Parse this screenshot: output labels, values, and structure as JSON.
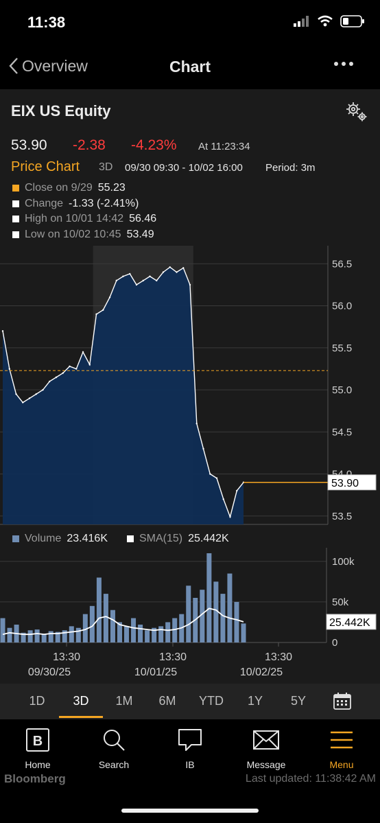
{
  "status": {
    "time": "11:38"
  },
  "nav": {
    "back_label": "Overview",
    "title": "Chart"
  },
  "security": {
    "ticker": "EIX US Equity"
  },
  "quote": {
    "last": "53.90",
    "change": "-2.38",
    "pct_change": "-4.23%",
    "as_of": "At 11:23:34"
  },
  "chart_header": {
    "label": "Price Chart",
    "range": "3D",
    "dates": "09/30 09:30 - 10/02 16:00",
    "period": "Period: 3m"
  },
  "legend": [
    {
      "label": "Close on 9/29",
      "value": "55.23",
      "color": "#f5a623"
    },
    {
      "label": "Change",
      "value": "-1.33 (-2.41%)",
      "color": "#ffffff"
    },
    {
      "label": "High on 10/01 14:42",
      "value": "56.46",
      "color": "#ffffff"
    },
    {
      "label": "Low on 10/02 10:45",
      "value": "53.49",
      "color": "#ffffff"
    }
  ],
  "volume_legend": {
    "volume_label": "Volume",
    "volume_value": "23.416K",
    "volume_color": "#6f8db3",
    "sma_label": "SMA(15)",
    "sma_value": "25.442K",
    "sma_color": "#ffffff"
  },
  "chart_data": [
    {
      "type": "area",
      "title": "Price Chart",
      "x": [
        "09/30/25 09:30",
        "09/30/25 10:00",
        "09/30/25 10:30",
        "09/30/25 11:00",
        "09/30/25 11:30",
        "09/30/25 12:00",
        "09/30/25 12:30",
        "09/30/25 13:00",
        "09/30/25 13:30",
        "09/30/25 14:00",
        "09/30/25 14:30",
        "09/30/25 15:00",
        "09/30/25 15:30",
        "09/30/25 16:00",
        "10/01/25 09:30",
        "10/01/25 10:00",
        "10/01/25 10:30",
        "10/01/25 11:00",
        "10/01/25 11:30",
        "10/01/25 12:00",
        "10/01/25 12:30",
        "10/01/25 13:00",
        "10/01/25 13:30",
        "10/01/25 14:00",
        "10/01/25 14:30",
        "10/01/25 14:42",
        "10/01/25 15:00",
        "10/01/25 15:30",
        "10/01/25 16:00",
        "10/02/25 09:30",
        "10/02/25 09:45",
        "10/02/25 10:00",
        "10/02/25 10:15",
        "10/02/25 10:30",
        "10/02/25 10:45",
        "10/02/25 11:00",
        "10/02/25 11:23"
      ],
      "values": [
        55.7,
        55.25,
        54.95,
        54.85,
        54.9,
        54.95,
        55.0,
        55.1,
        55.15,
        55.2,
        55.28,
        55.25,
        55.45,
        55.3,
        55.9,
        55.95,
        56.1,
        56.3,
        56.35,
        56.38,
        56.25,
        56.3,
        56.35,
        56.3,
        56.4,
        56.46,
        56.4,
        56.45,
        56.25,
        54.6,
        54.3,
        54.0,
        53.95,
        53.7,
        53.49,
        53.8,
        53.9
      ],
      "reference_line": {
        "label": "Close on 9/29",
        "value": 55.23
      },
      "last_value_label": "53.90",
      "ylim": [
        53.4,
        56.6
      ],
      "y_ticks": [
        "56.5",
        "56.0",
        "55.5",
        "55.0",
        "54.5",
        "54.0",
        "53.5"
      ],
      "highlighted_session": "10/01/25",
      "grid": true
    },
    {
      "type": "bar",
      "title": "Volume",
      "x": [
        "09/30/25 09:30",
        "09/30/25 10:00",
        "09/30/25 10:30",
        "09/30/25 11:00",
        "09/30/25 11:30",
        "09/30/25 12:00",
        "09/30/25 12:30",
        "09/30/25 13:00",
        "09/30/25 13:30",
        "09/30/25 14:00",
        "09/30/25 14:30",
        "09/30/25 15:00",
        "09/30/25 15:30",
        "09/30/25 16:00",
        "10/01/25 09:30",
        "10/01/25 10:00",
        "10/01/25 10:30",
        "10/01/25 11:00",
        "10/01/25 11:30",
        "10/01/25 12:00",
        "10/01/25 12:30",
        "10/01/25 13:00",
        "10/01/25 13:30",
        "10/01/25 14:00",
        "10/01/25 14:30",
        "10/01/25 15:00",
        "10/01/25 15:30",
        "10/01/25 16:00",
        "10/02/25 09:30",
        "10/02/25 09:45",
        "10/02/25 10:00",
        "10/02/25 10:15",
        "10/02/25 10:30",
        "10/02/25 10:45",
        "10/02/25 11:00",
        "10/02/25 11:23"
      ],
      "series": [
        {
          "name": "Volume",
          "values": [
            30000,
            18000,
            22000,
            12000,
            15000,
            16000,
            10000,
            14000,
            13000,
            15000,
            20000,
            18000,
            35000,
            45000,
            80000,
            60000,
            40000,
            25000,
            20000,
            30000,
            22000,
            15000,
            18000,
            20000,
            25000,
            30000,
            35000,
            70000,
            55000,
            65000,
            110000,
            75000,
            60000,
            85000,
            50000,
            23416
          ]
        },
        {
          "name": "SMA(15)",
          "values": [
            10000,
            12000,
            11000,
            10000,
            10000,
            11000,
            10000,
            11000,
            11000,
            12000,
            13000,
            14000,
            16000,
            20000,
            30000,
            32000,
            28000,
            22000,
            20000,
            18000,
            17000,
            16000,
            15000,
            16000,
            15000,
            16000,
            18000,
            22000,
            28000,
            35000,
            42000,
            40000,
            33000,
            30000,
            28000,
            25442
          ]
        }
      ],
      "last_value_label": "25.442K",
      "ylim": [
        0,
        110000
      ],
      "y_ticks": [
        "100k",
        "50k",
        "0"
      ]
    }
  ],
  "x_axis": [
    {
      "time": "13:30",
      "date": "09/30/25"
    },
    {
      "time": "13:30",
      "date": "10/01/25"
    },
    {
      "time": "13:30",
      "date": "10/02/25"
    }
  ],
  "ranges": [
    "1D",
    "3D",
    "1M",
    "6M",
    "YTD",
    "1Y",
    "5Y"
  ],
  "active_range": "3D",
  "tabs": [
    "Home",
    "Search",
    "IB",
    "Message",
    "Menu"
  ],
  "active_tab": "Menu",
  "brand": "Bloomberg",
  "last_updated": "Last updated: 11:38:42 AM",
  "colors": {
    "accent": "#f5a623",
    "negative": "#ff3c3c",
    "area_fill": "#0f2d55",
    "area_line": "#ffffff",
    "volume": "#6f8db3"
  }
}
